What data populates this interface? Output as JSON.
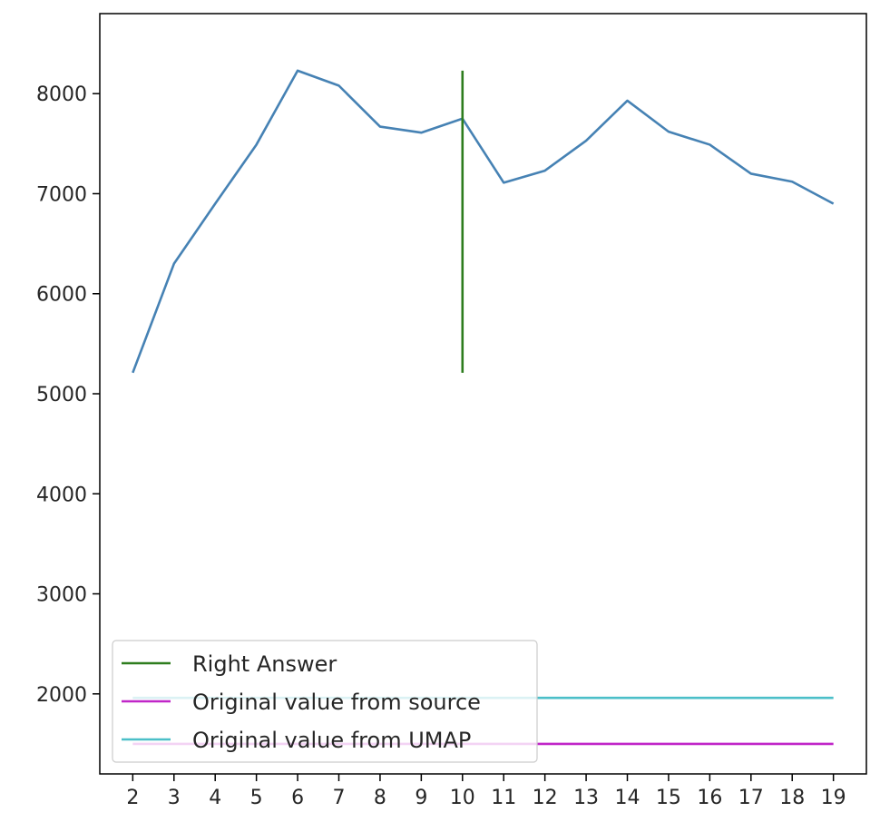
{
  "chart_data": {
    "type": "line",
    "title": "",
    "xlabel": "",
    "ylabel": "",
    "x": [
      2,
      3,
      4,
      5,
      6,
      7,
      8,
      9,
      10,
      11,
      12,
      13,
      14,
      15,
      16,
      17,
      18,
      19
    ],
    "xlim": [
      1.2,
      19.8
    ],
    "ylim": [
      1200,
      8800
    ],
    "x_ticks": [
      "2",
      "3",
      "4",
      "5",
      "6",
      "7",
      "8",
      "9",
      "10",
      "11",
      "12",
      "13",
      "14",
      "15",
      "16",
      "17",
      "18",
      "19"
    ],
    "y_ticks": [
      "2000",
      "3000",
      "4000",
      "5000",
      "6000",
      "7000",
      "8000"
    ],
    "grid": false,
    "legend_position": "lower-left",
    "series": [
      {
        "color": "#4682b4",
        "values": [
          5210,
          6300,
          6900,
          7490,
          8230,
          8080,
          7670,
          7610,
          7750,
          7110,
          7230,
          7530,
          7930,
          7620,
          7490,
          7200,
          7120,
          6900
        ]
      }
    ],
    "reference_lines": [
      {
        "name": "Right Answer",
        "orientation": "vertical",
        "x": 10,
        "y_range": [
          5210,
          8230
        ],
        "color": "#2e7d1e"
      },
      {
        "name": "Original value from source",
        "orientation": "horizontal",
        "y": 1500,
        "x_range": [
          2,
          19
        ],
        "color": "#c026c8"
      },
      {
        "name": "Original value from UMAP",
        "orientation": "horizontal",
        "y": 1960,
        "x_range": [
          2,
          19
        ],
        "color": "#4bbfc8"
      }
    ]
  }
}
